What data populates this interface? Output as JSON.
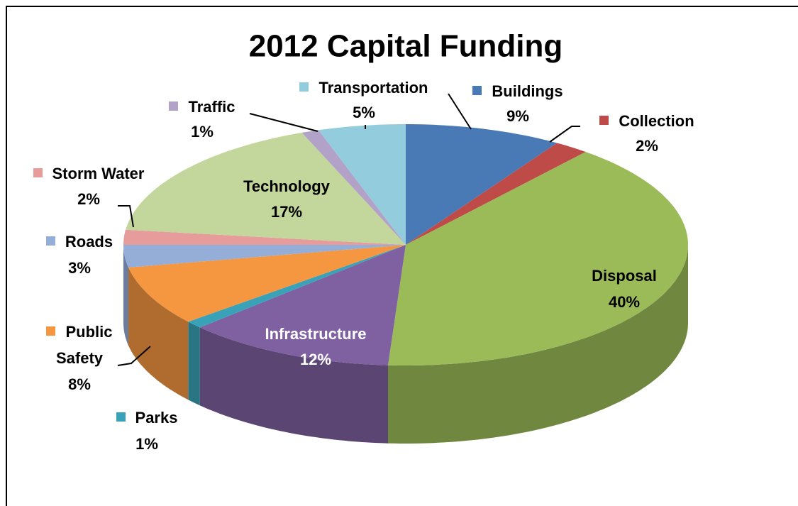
{
  "chart_data": {
    "type": "pie",
    "title": "2012 Capital Funding",
    "categories": [
      "Buildings",
      "Collection",
      "Disposal",
      "Infrastructure",
      "Parks",
      "Public Safety",
      "Roads",
      "Storm Water",
      "Technology",
      "Traffic",
      "Transportation"
    ],
    "values": [
      9,
      2,
      40,
      12,
      1,
      8,
      3,
      2,
      17,
      1,
      5
    ],
    "value_labels": [
      "9%",
      "2%",
      "40%",
      "12%",
      "1%",
      "8%",
      "3%",
      "2%",
      "17%",
      "1%",
      "5%"
    ],
    "colors": [
      "#4a7ab5",
      "#be4b48",
      "#9bbb59",
      "#7f60a0",
      "#3aa2b8",
      "#f59640",
      "#95aed8",
      "#e59c9b",
      "#c3d69b",
      "#b3a2c7",
      "#93cddd"
    ]
  }
}
